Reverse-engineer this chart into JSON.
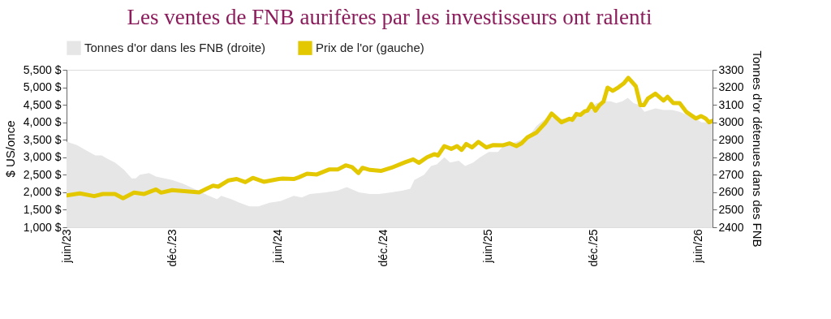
{
  "chart_data": {
    "type": "line",
    "title": "Les ventes de FNB aurifères par les investisseurs ont ralenti",
    "ylabel": "$ US/once",
    "y2label": "Tonnes d'or détenues dans des FNB",
    "legend": "top",
    "grid": false,
    "xlim": [
      "2023-06-01",
      "2026-06-25"
    ],
    "xticks": [
      {
        "value": "2023-06-01",
        "label": "juin/23"
      },
      {
        "value": "2023-12-01",
        "label": "déc./23"
      },
      {
        "value": "2024-06-01",
        "label": "juin/24"
      },
      {
        "value": "2024-12-01",
        "label": "déc./24"
      },
      {
        "value": "2025-06-01",
        "label": "juin/25"
      },
      {
        "value": "2025-12-01",
        "label": "déc./25"
      },
      {
        "value": "2026-06-01",
        "label": "juin/26"
      }
    ],
    "ylim": [
      1000,
      5500
    ],
    "yticks": [
      {
        "value": 1000,
        "label": "1,000 $"
      },
      {
        "value": 1500,
        "label": "1,500 $"
      },
      {
        "value": 2000,
        "label": "2,000 $"
      },
      {
        "value": 2500,
        "label": "2,500 $"
      },
      {
        "value": 3000,
        "label": "3,000 $"
      },
      {
        "value": 3500,
        "label": "3,500 $"
      },
      {
        "value": 4000,
        "label": "4,000 $"
      },
      {
        "value": 4500,
        "label": "4,500 $"
      },
      {
        "value": 5000,
        "label": "5,000 $"
      },
      {
        "value": 5500,
        "label": "5,500 $"
      }
    ],
    "y2lim": [
      2400,
      3300
    ],
    "y2ticks": [
      2400,
      2500,
      2600,
      2700,
      2800,
      2900,
      3000,
      3100,
      3200,
      3300
    ],
    "series": [
      {
        "name": "Tonnes d'or dans les FNB (droite)",
        "type": "area",
        "axis": "y2",
        "color": "#e6e6e6",
        "x": [
          "2023-06-01",
          "2023-06-19",
          "2023-07-05",
          "2023-07-21",
          "2023-08-01",
          "2023-08-12",
          "2023-08-24",
          "2023-09-08",
          "2023-09-22",
          "2023-09-29",
          "2023-10-06",
          "2023-10-22",
          "2023-11-03",
          "2023-12-01",
          "2023-12-19",
          "2024-01-08",
          "2024-01-27",
          "2024-02-17",
          "2024-02-24",
          "2024-03-13",
          "2024-03-27",
          "2024-04-13",
          "2024-04-29",
          "2024-05-18",
          "2024-06-06",
          "2024-06-29",
          "2024-07-13",
          "2024-07-27",
          "2024-08-24",
          "2024-09-13",
          "2024-09-29",
          "2024-10-20",
          "2024-11-08",
          "2024-11-24",
          "2024-12-15",
          "2025-01-04",
          "2025-01-17",
          "2025-01-24",
          "2025-02-10",
          "2025-02-22",
          "2025-03-04",
          "2025-03-17",
          "2025-03-27",
          "2025-04-11",
          "2025-04-22",
          "2025-05-06",
          "2025-05-18",
          "2025-06-02",
          "2025-06-18",
          "2025-06-26",
          "2025-07-13",
          "2025-07-29",
          "2025-08-15",
          "2025-08-24",
          "2025-09-04",
          "2025-09-15",
          "2025-09-27",
          "2025-10-11",
          "2025-10-25",
          "2025-11-08",
          "2025-11-22",
          "2025-12-06",
          "2025-12-20",
          "2025-12-30",
          "2026-01-09",
          "2026-01-20",
          "2026-01-29",
          "2026-02-08",
          "2026-02-17",
          "2026-02-27",
          "2026-03-09",
          "2026-03-18",
          "2026-04-01",
          "2026-04-16",
          "2026-04-29",
          "2026-05-13",
          "2026-05-27",
          "2026-06-06",
          "2026-06-25"
        ],
        "values": [
          2890,
          2870,
          2840,
          2810,
          2810,
          2790,
          2770,
          2730,
          2680,
          2680,
          2700,
          2710,
          2690,
          2670,
          2650,
          2620,
          2590,
          2560,
          2580,
          2560,
          2540,
          2520,
          2520,
          2540,
          2550,
          2580,
          2570,
          2590,
          2600,
          2610,
          2630,
          2600,
          2590,
          2590,
          2600,
          2610,
          2620,
          2670,
          2700,
          2750,
          2760,
          2800,
          2770,
          2780,
          2750,
          2770,
          2800,
          2830,
          2830,
          2860,
          2880,
          2900,
          2940,
          2980,
          3010,
          3030,
          3020,
          3020,
          3030,
          3060,
          3080,
          3110,
          3120,
          3120,
          3110,
          3120,
          3140,
          3110,
          3100,
          3060,
          3070,
          3080,
          3070,
          3070,
          3060,
          3040,
          3020,
          3000,
          3000
        ]
      },
      {
        "name": "Prix de l'or (gauche)",
        "axis": "y",
        "color": "#e3c800",
        "x": [
          "2023-06-01",
          "2023-06-24",
          "2023-07-19",
          "2023-08-03",
          "2023-08-24",
          "2023-09-07",
          "2023-09-26",
          "2023-10-13",
          "2023-11-03",
          "2023-11-12",
          "2023-12-01",
          "2024-01-17",
          "2024-02-10",
          "2024-02-19",
          "2024-03-08",
          "2024-03-22",
          "2024-04-06",
          "2024-04-19",
          "2024-05-08",
          "2024-06-03",
          "2024-06-10",
          "2024-06-29",
          "2024-07-08",
          "2024-07-22",
          "2024-08-08",
          "2024-08-29",
          "2024-09-13",
          "2024-09-27",
          "2024-10-08",
          "2024-10-19",
          "2024-10-26",
          "2024-11-08",
          "2024-11-27",
          "2024-12-15",
          "2025-01-08",
          "2025-01-22",
          "2025-02-01",
          "2025-02-15",
          "2025-02-28",
          "2025-03-06",
          "2025-03-17",
          "2025-03-29",
          "2025-04-08",
          "2025-04-16",
          "2025-04-24",
          "2025-05-04",
          "2025-05-15",
          "2025-05-29",
          "2025-06-10",
          "2025-06-26",
          "2025-07-08",
          "2025-07-20",
          "2025-07-29",
          "2025-08-08",
          "2025-08-24",
          "2025-09-08",
          "2025-09-19",
          "2025-10-06",
          "2025-10-20",
          "2025-10-25",
          "2025-11-01",
          "2025-11-08",
          "2025-11-15",
          "2025-11-20",
          "2025-11-27",
          "2025-12-04",
          "2025-12-11",
          "2025-12-18",
          "2025-12-25",
          "2026-01-03",
          "2026-01-13",
          "2026-01-22",
          "2026-01-30",
          "2026-02-12",
          "2026-02-20",
          "2026-02-26",
          "2026-03-05",
          "2026-03-18",
          "2026-04-01",
          "2026-04-08",
          "2026-04-18",
          "2026-04-29",
          "2026-05-11",
          "2026-05-27",
          "2026-06-05",
          "2026-06-13",
          "2026-06-19",
          "2026-06-25"
        ],
        "values": [
          1910,
          1970,
          1890,
          1950,
          1950,
          1830,
          1990,
          1950,
          2080,
          1990,
          2060,
          2000,
          2190,
          2160,
          2340,
          2380,
          2290,
          2410,
          2300,
          2380,
          2390,
          2380,
          2430,
          2530,
          2510,
          2650,
          2650,
          2770,
          2720,
          2550,
          2700,
          2640,
          2610,
          2700,
          2860,
          2940,
          2840,
          3000,
          3090,
          3050,
          3320,
          3240,
          3320,
          3210,
          3380,
          3280,
          3440,
          3280,
          3350,
          3340,
          3400,
          3320,
          3400,
          3570,
          3710,
          3980,
          4250,
          4000,
          4100,
          4070,
          4240,
          4210,
          4310,
          4330,
          4520,
          4330,
          4490,
          4590,
          4990,
          4900,
          5000,
          5110,
          5270,
          5030,
          4490,
          4490,
          4680,
          4820,
          4620,
          4730,
          4550,
          4550,
          4290,
          4110,
          4180,
          4110,
          4000,
          4040
        ]
      }
    ]
  }
}
